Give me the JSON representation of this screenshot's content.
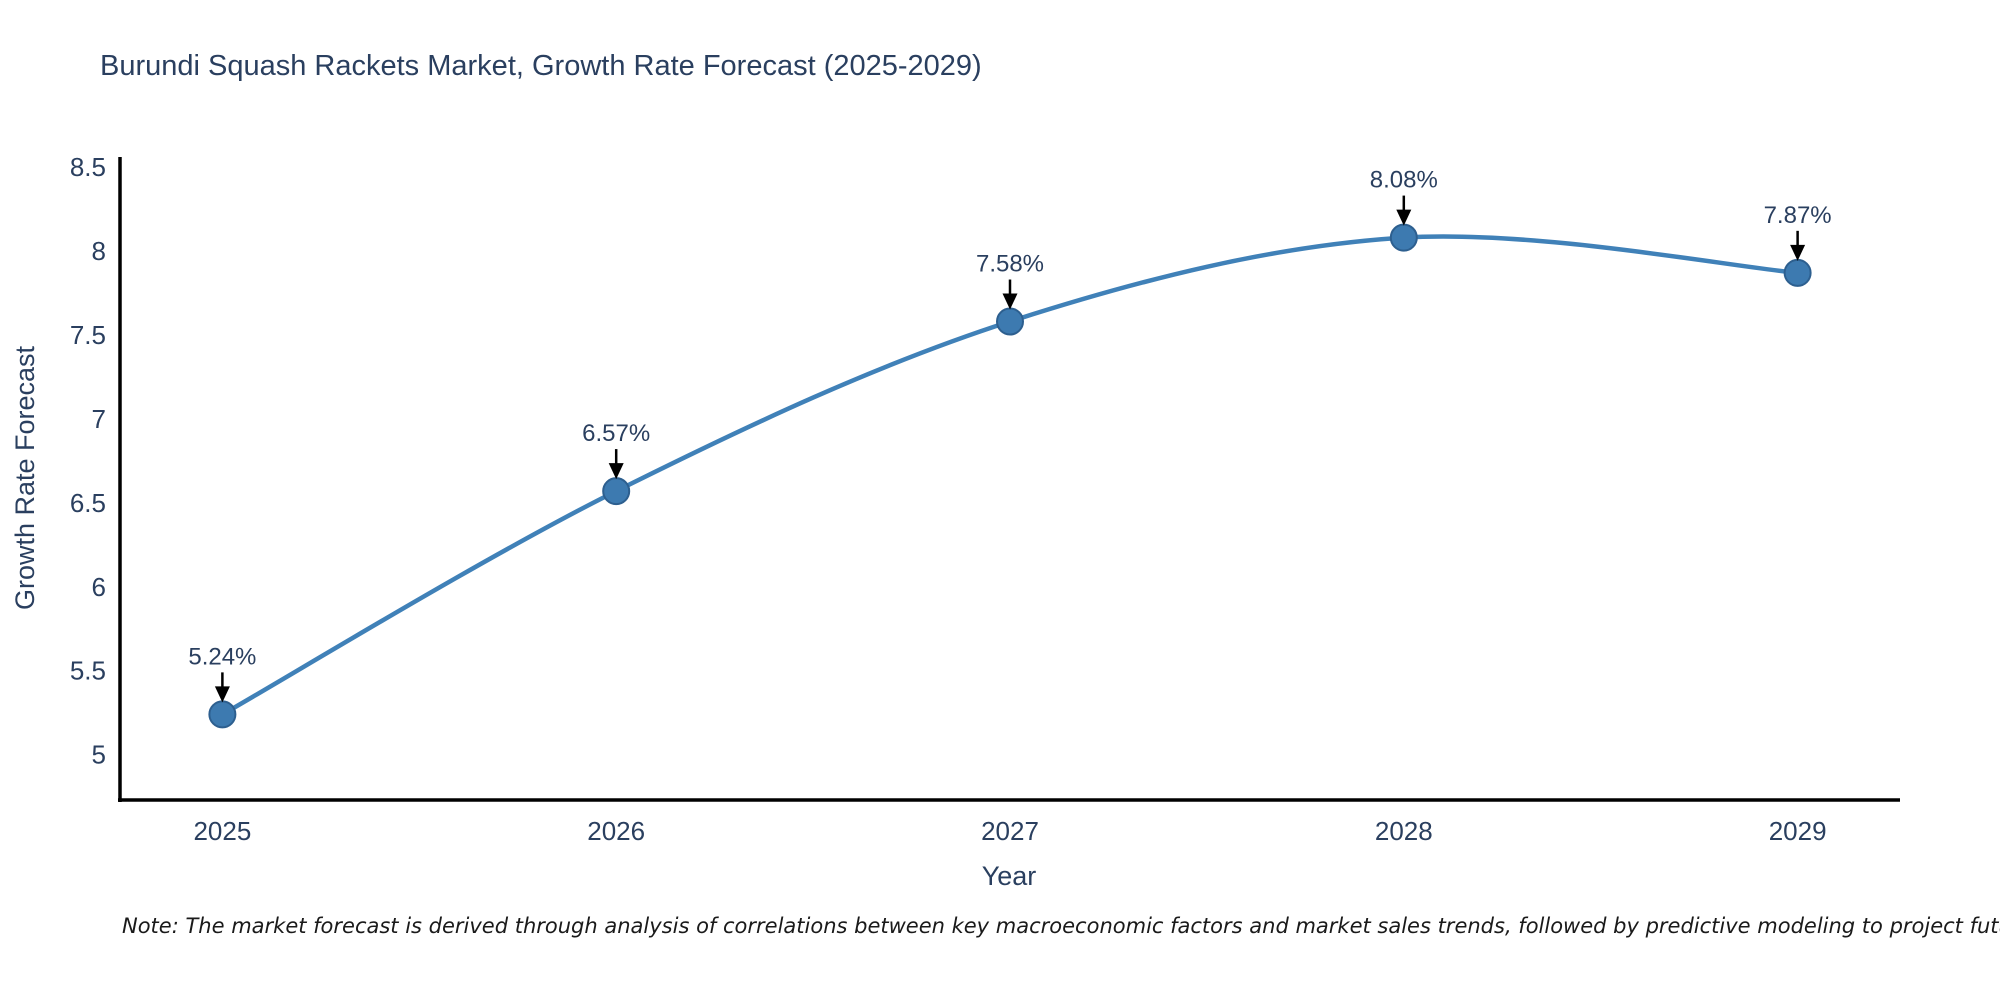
{
  "title": "Burundi Squash Rackets Market, Growth Rate Forecast (2025-2029)",
  "note": "Note: The market forecast is derived through analysis of correlations between key macroeconomic factors and market sales trends, followed by predictive modeling to project future sales",
  "chart_data": {
    "type": "line",
    "title": "Burundi Squash Rackets Market, Growth Rate Forecast (2025-2029)",
    "xlabel": "Year",
    "ylabel": "Growth Rate Forecast",
    "x": [
      2025,
      2026,
      2027,
      2028,
      2029
    ],
    "values": [
      5.24,
      6.57,
      7.58,
      8.08,
      7.87
    ],
    "point_labels": [
      "5.24%",
      "6.57%",
      "7.58%",
      "8.08%",
      "7.87%"
    ],
    "yticks": [
      5,
      5.5,
      6,
      6.5,
      7,
      7.5,
      8,
      8.5
    ],
    "ytick_labels": [
      "5",
      "5.5",
      "6",
      "6.5",
      "7",
      "7.5",
      "8",
      "8.5"
    ],
    "xtick_labels": [
      "2025",
      "2026",
      "2027",
      "2028",
      "2029"
    ],
    "ylim": [
      4.73,
      8.56
    ],
    "xlim": [
      2024.74,
      2029.26
    ],
    "line_shape": "spline",
    "grid": false,
    "legend": "none",
    "colors": {
      "line": "#4081b8",
      "marker_fill": "#3d7ab0",
      "marker_edge": "#2d5f8f",
      "axis_line": "#000000",
      "tick_text": "#2a3f5f",
      "title_text": "#2a3f5f",
      "annotation_arrow": "#000000",
      "background": "#ffffff"
    }
  }
}
